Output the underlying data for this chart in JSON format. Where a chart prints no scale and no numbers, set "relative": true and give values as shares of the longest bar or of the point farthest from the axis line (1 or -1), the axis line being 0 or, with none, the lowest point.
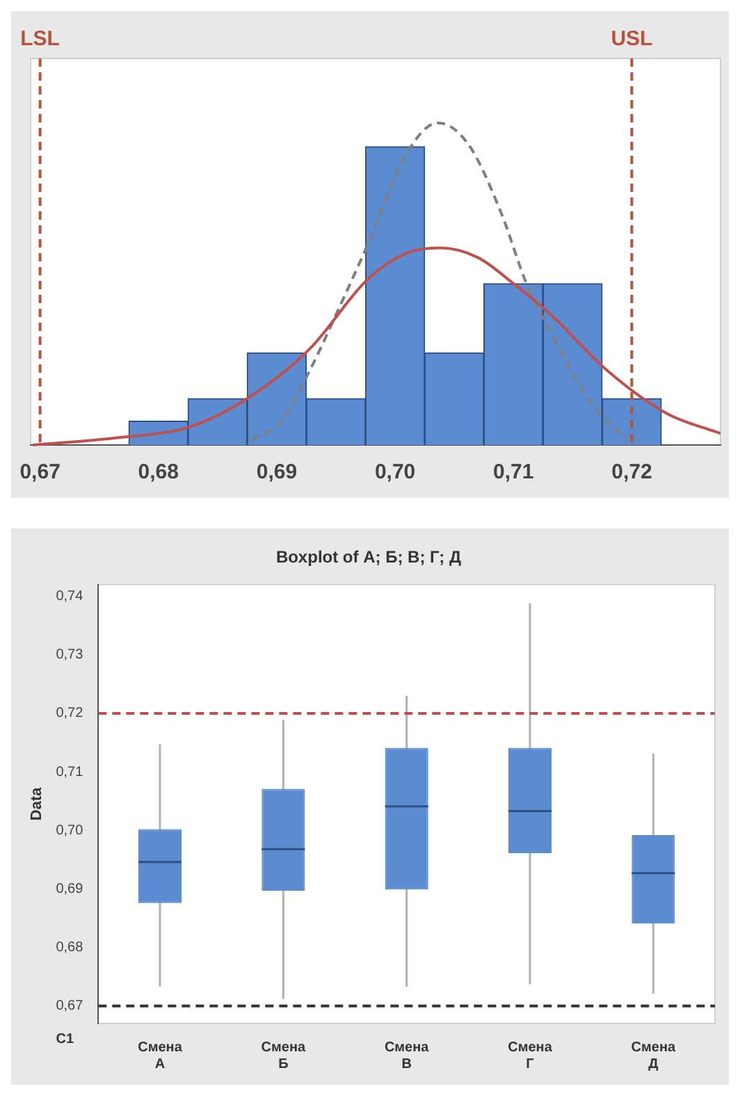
{
  "chart_data": [
    {
      "type": "histogram",
      "relative": true,
      "bins": [
        0.6775,
        0.6825,
        0.6875,
        0.6925,
        0.6975,
        0.7025,
        0.7075,
        0.7125,
        0.7175,
        0.7225
      ],
      "values": [
        0.074,
        0.144,
        0.286,
        0.144,
        0.926,
        0.286,
        0.501,
        0.501,
        0.144
      ],
      "color": "#5b8bd0",
      "xlim": [
        0.6692,
        0.7275
      ],
      "xticks": [
        {
          "value": 0.67,
          "label": "0,67"
        },
        {
          "value": 0.68,
          "label": "0,68"
        },
        {
          "value": 0.69,
          "label": "0,69"
        },
        {
          "value": 0.7,
          "label": "0,70"
        },
        {
          "value": 0.71,
          "label": "0,71"
        },
        {
          "value": 0.72,
          "label": "0,72"
        }
      ],
      "ref_lines": [
        {
          "axis": "x",
          "value": 0.67,
          "label": "LSL",
          "color": "#b5533c",
          "line_style": "dashed"
        },
        {
          "axis": "x",
          "value": 0.72,
          "label": "USL",
          "color": "#b5533c",
          "line_style": "dashed"
        }
      ],
      "series": [
        {
          "type": "line",
          "color": "#c0504d",
          "line_style": "solid",
          "marker": "none",
          "x": [
            0.6694,
            0.6767,
            0.6827,
            0.6878,
            0.6928,
            0.6977,
            0.701,
            0.7038,
            0.707,
            0.7102,
            0.7131,
            0.7179,
            0.723,
            0.7275
          ],
          "values": [
            0.0,
            0.023,
            0.057,
            0.151,
            0.299,
            0.515,
            0.596,
            0.612,
            0.582,
            0.495,
            0.407,
            0.232,
            0.097,
            0.036
          ]
        },
        {
          "type": "line",
          "color": "#7f7f7f",
          "line_style": "dashed",
          "marker": "none",
          "x": [
            0.6879,
            0.6903,
            0.6928,
            0.6952,
            0.6977,
            0.701,
            0.7036,
            0.7062,
            0.709,
            0.7111,
            0.7131,
            0.7167,
            0.7196
          ],
          "values": [
            0.016,
            0.07,
            0.232,
            0.42,
            0.623,
            0.906,
            1.0,
            0.933,
            0.717,
            0.501,
            0.353,
            0.124,
            0.016
          ]
        }
      ]
    },
    {
      "type": "box",
      "title": "Boxplot of А; Б; В; Г; Д",
      "ylabel": "Data",
      "xlabel": "C1",
      "color": "#5b8bd0",
      "categories": [
        "Смена А",
        "Смена Б",
        "Смена В",
        "Смена Г",
        "Смена Д"
      ],
      "boxes": [
        {
          "low": 0.6733,
          "q1": 0.6876,
          "median": 0.6946,
          "q3": 0.7002,
          "high": 0.7147
        },
        {
          "low": 0.6712,
          "q1": 0.6897,
          "median": 0.6968,
          "q3": 0.7071,
          "high": 0.7189
        },
        {
          "low": 0.6733,
          "q1": 0.6899,
          "median": 0.7041,
          "q3": 0.7141,
          "high": 0.723
        },
        {
          "low": 0.6737,
          "q1": 0.6961,
          "median": 0.7033,
          "q3": 0.7141,
          "high": 0.7388
        },
        {
          "low": 0.6721,
          "q1": 0.6841,
          "median": 0.6927,
          "q3": 0.6992,
          "high": 0.7131
        }
      ],
      "ylim": [
        0.667,
        0.742
      ],
      "yticks": [
        {
          "value": 0.67,
          "label": "0,67"
        },
        {
          "value": 0.68,
          "label": "0,68"
        },
        {
          "value": 0.69,
          "label": "0,69"
        },
        {
          "value": 0.7,
          "label": "0,70"
        },
        {
          "value": 0.71,
          "label": "0,71"
        },
        {
          "value": 0.72,
          "label": "0,72"
        },
        {
          "value": 0.73,
          "label": "0,73"
        },
        {
          "value": 0.74,
          "label": "0,74"
        }
      ],
      "ref_lines": [
        {
          "axis": "y",
          "value": 0.72,
          "color": "#c0504d",
          "line_style": "dashed"
        },
        {
          "axis": "y",
          "value": 0.67,
          "color": "#333333",
          "line_style": "dashed"
        }
      ]
    }
  ]
}
